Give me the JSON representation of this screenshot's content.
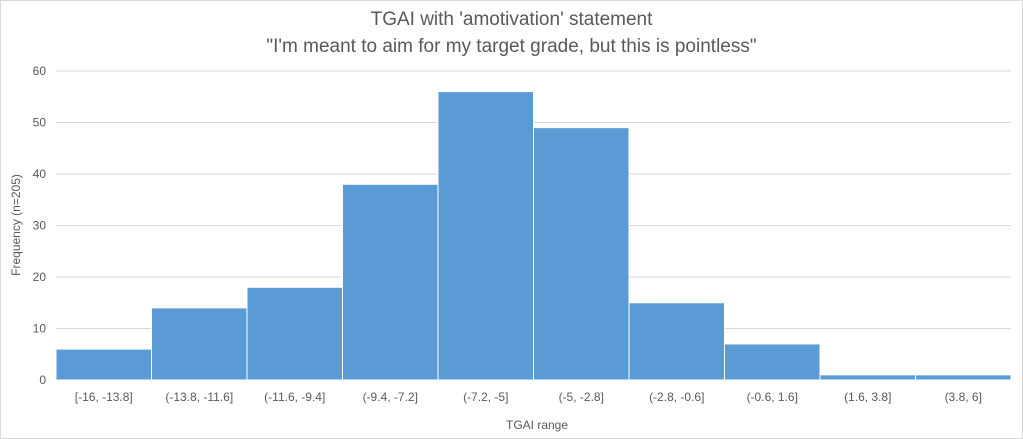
{
  "chart_data": {
    "type": "bar",
    "title": "TGAI with 'amotivation' statement",
    "subtitle": "\"I'm meant to aim for my target grade, but this is pointless\"",
    "xlabel": "TGAI range",
    "ylabel": "Frequency (n=205)",
    "categories": [
      "[-16, -13.8]",
      "(-13.8, -11.6]",
      "(-11.6, -9.4]",
      "(-9.4, -7.2]",
      "(-7.2, -5]",
      "(-5, -2.8]",
      "(-2.8, -0.6]",
      "(-0.6, 1.6]",
      "(1.6, 3.8]",
      "(3.8, 6]"
    ],
    "values": [
      6,
      14,
      18,
      38,
      56,
      49,
      15,
      7,
      1,
      1
    ],
    "ylim": [
      0,
      60
    ],
    "yticks": [
      0,
      10,
      20,
      30,
      40,
      50,
      60
    ],
    "grid": true,
    "bar_color": "#5b9bd5"
  }
}
